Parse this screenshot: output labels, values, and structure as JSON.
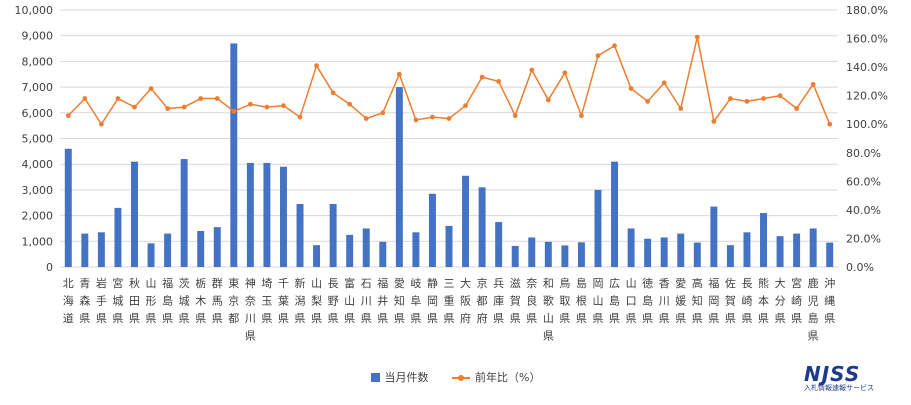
{
  "chart_data": {
    "type": "bar",
    "title": "",
    "xlabel": "",
    "ylabel": "",
    "ylim": [
      0,
      10000
    ],
    "y2lim": [
      0,
      180
    ],
    "y_ticks": [
      "0",
      "1,000",
      "2,000",
      "3,000",
      "4,000",
      "5,000",
      "6,000",
      "7,000",
      "8,000",
      "9,000",
      "10,000"
    ],
    "y2_ticks": [
      "0.0%",
      "20.0%",
      "40.0%",
      "60.0%",
      "80.0%",
      "100.0%",
      "120.0%",
      "140.0%",
      "160.0%",
      "180.0%"
    ],
    "grid": true,
    "legend_position": "bottom",
    "categories": [
      "北海道",
      "青森県",
      "岩手県",
      "宮城県",
      "秋田県",
      "山形県",
      "福島県",
      "茨城県",
      "栃木県",
      "群馬県",
      "東京都",
      "神奈川県",
      "埼玉県",
      "千葉県",
      "新潟県",
      "山梨県",
      "長野県",
      "富山県",
      "石川県",
      "福井県",
      "愛知県",
      "岐阜県",
      "静岡県",
      "三重県",
      "大阪府",
      "京都府",
      "兵庫県",
      "滋賀県",
      "奈良県",
      "和歌山県",
      "鳥取県",
      "島根県",
      "岡山県",
      "広島県",
      "山口県",
      "徳島県",
      "香川県",
      "愛媛県",
      "高知県",
      "福岡県",
      "佐賀県",
      "長崎県",
      "熊本県",
      "大分県",
      "宮崎県",
      "鹿児島県",
      "沖縄県"
    ],
    "series": [
      {
        "name": "当月件数",
        "type": "bar",
        "color": "#4472C4",
        "axis": "left",
        "values": [
          4600,
          1300,
          1350,
          2300,
          4100,
          920,
          1300,
          4200,
          1400,
          1550,
          8700,
          4050,
          4050,
          3900,
          2450,
          850,
          2450,
          1250,
          1500,
          980,
          7000,
          1350,
          2850,
          1600,
          3550,
          3100,
          1750,
          820,
          1150,
          980,
          840,
          960,
          3000,
          4100,
          1500,
          1100,
          1150,
          1300,
          950,
          2350,
          850,
          1350,
          2100,
          1200,
          1300,
          1500,
          950
        ]
      },
      {
        "name": "前年比（%）",
        "type": "line",
        "color": "#ED7D31",
        "axis": "right",
        "values": [
          106,
          118,
          100,
          118,
          112,
          125,
          111,
          112,
          118,
          118,
          109,
          114,
          112,
          113,
          105,
          141,
          122,
          114,
          104,
          108,
          135,
          103,
          105,
          104,
          113,
          133,
          130,
          106,
          138,
          117,
          136,
          106,
          148,
          155,
          125,
          116,
          129,
          111,
          161,
          102,
          118,
          116,
          118,
          120,
          111,
          128,
          100
        ]
      }
    ]
  },
  "logo": {
    "mark": "NJSS",
    "subtitle": "入札情報速報サービス"
  }
}
